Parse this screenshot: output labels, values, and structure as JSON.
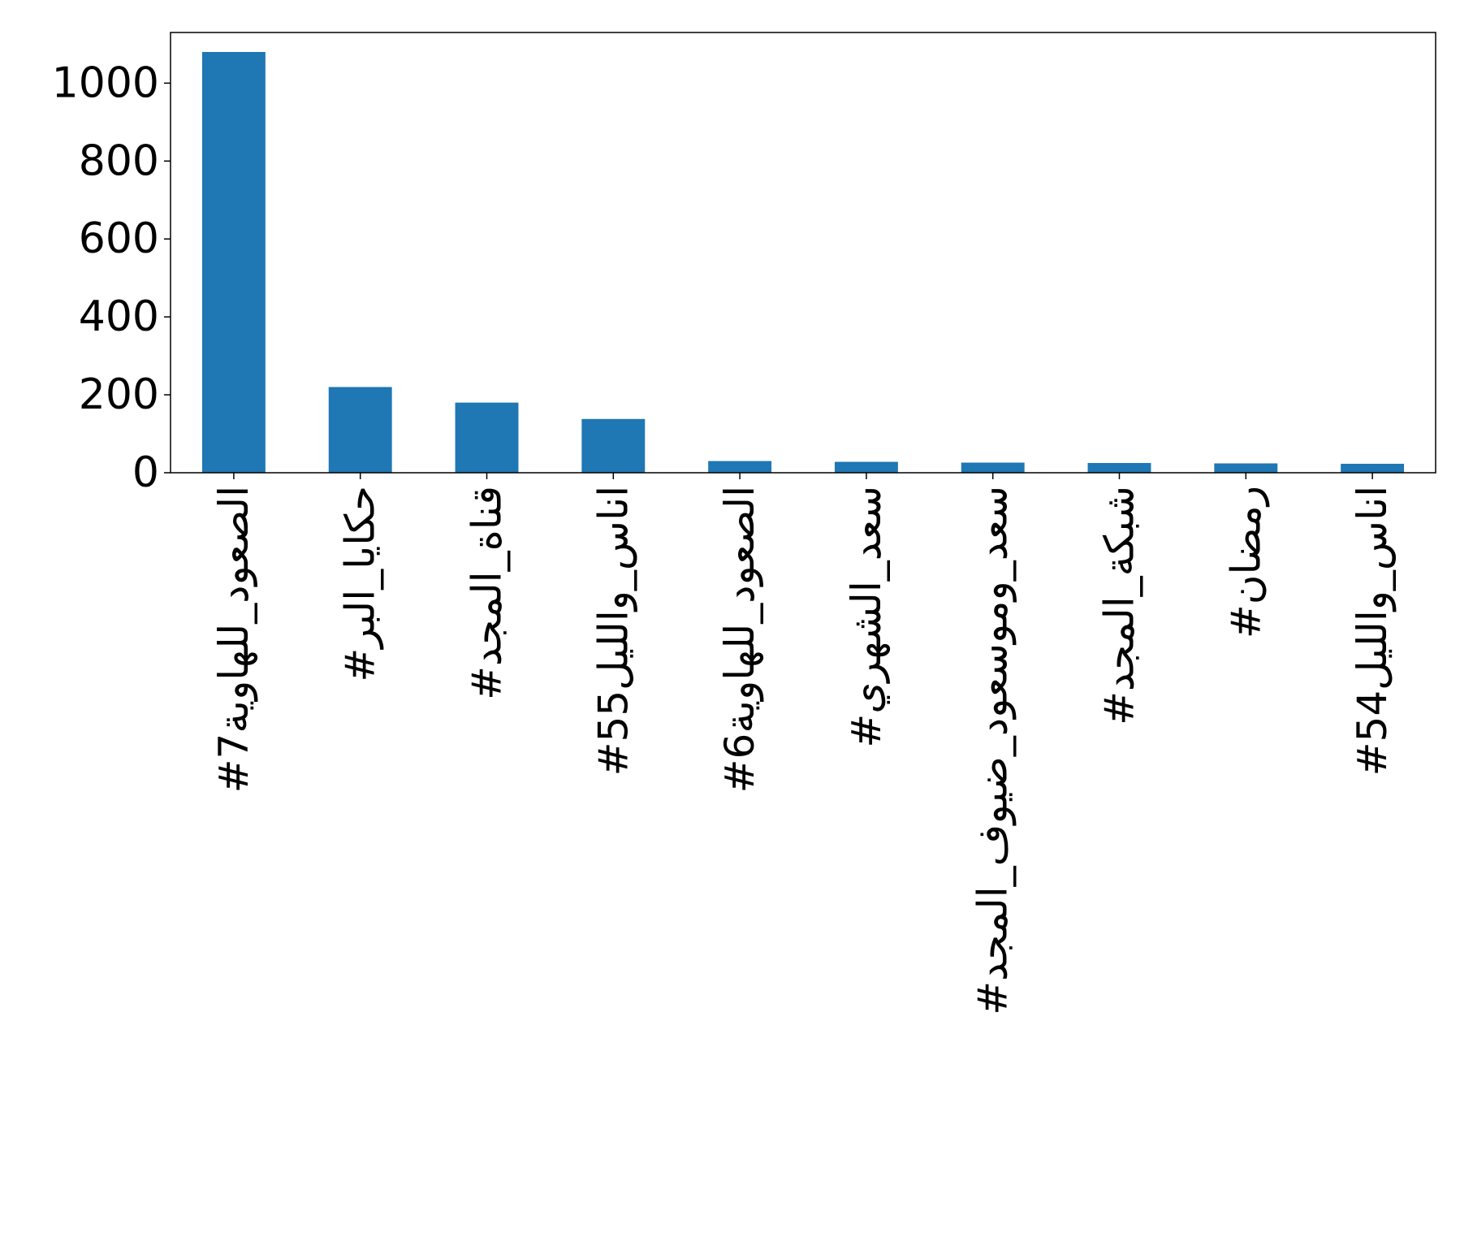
{
  "chart_data": {
    "type": "bar",
    "title": "",
    "xlabel": "",
    "ylabel": "",
    "categories": [
      "#الصعود_للهاوية7",
      "#حكايا_البر",
      "#قناة_المجد",
      "#اناس_والليل55",
      "#الصعود_للهاوية6",
      "#سعد_الشهري",
      "#سعد_وموسعود_ضيوف_المجد",
      "#شبكة_المجد",
      "#رمضان",
      "#اناس_والليل54"
    ],
    "values": [
      1080,
      220,
      180,
      138,
      30,
      28,
      26,
      25,
      24,
      23
    ],
    "ylim": [
      0,
      1130
    ],
    "yticks": [
      0,
      200,
      400,
      600,
      800,
      1000
    ],
    "bar_color": "#1f77b4",
    "grid": false,
    "legend": "none"
  }
}
